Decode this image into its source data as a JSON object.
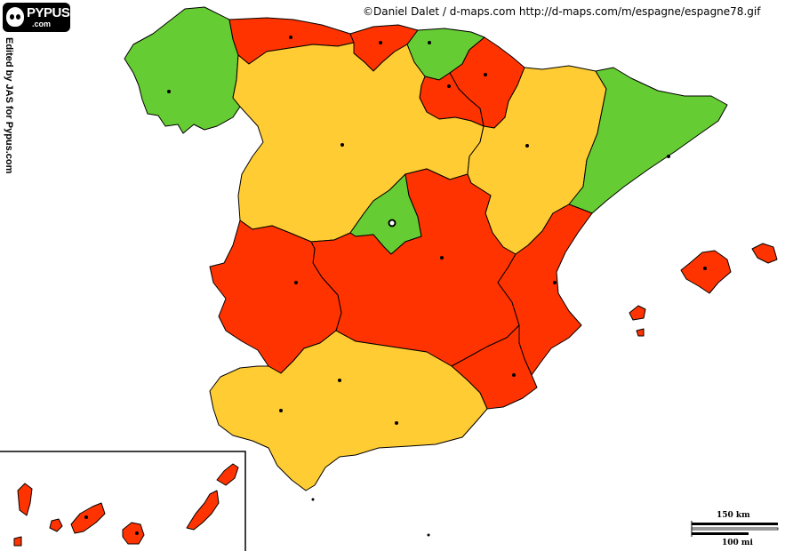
{
  "credit": "©Daniel Dalet / d-maps.com   http://d-maps.com/m/espagne/espagne78.gif",
  "logo": {
    "name": "PYPUS",
    "sub": ".com"
  },
  "edited_by": "Edited by JAS for Pypus.com",
  "scale": {
    "km_label": "150 km",
    "mi_label": "100 mi"
  },
  "colors": {
    "green": "#66cc33",
    "red": "#ff3300",
    "yellow": "#ffcc33",
    "outline": "#000000"
  },
  "regions": [
    {
      "id": "galicia",
      "color": "green"
    },
    {
      "id": "asturias",
      "color": "red"
    },
    {
      "id": "cantabria",
      "color": "red"
    },
    {
      "id": "pais-vasco",
      "color": "green"
    },
    {
      "id": "navarra",
      "color": "red"
    },
    {
      "id": "la-rioja",
      "color": "red"
    },
    {
      "id": "castilla-y-leon",
      "color": "yellow"
    },
    {
      "id": "aragon",
      "color": "yellow"
    },
    {
      "id": "cataluna",
      "color": "green"
    },
    {
      "id": "madrid",
      "color": "green"
    },
    {
      "id": "castilla-la-mancha",
      "color": "red"
    },
    {
      "id": "extremadura",
      "color": "red"
    },
    {
      "id": "comunidad-valenciana",
      "color": "red"
    },
    {
      "id": "murcia",
      "color": "red"
    },
    {
      "id": "andalucia",
      "color": "yellow"
    },
    {
      "id": "islas-baleares",
      "color": "red"
    },
    {
      "id": "islas-canarias",
      "color": "red"
    }
  ]
}
